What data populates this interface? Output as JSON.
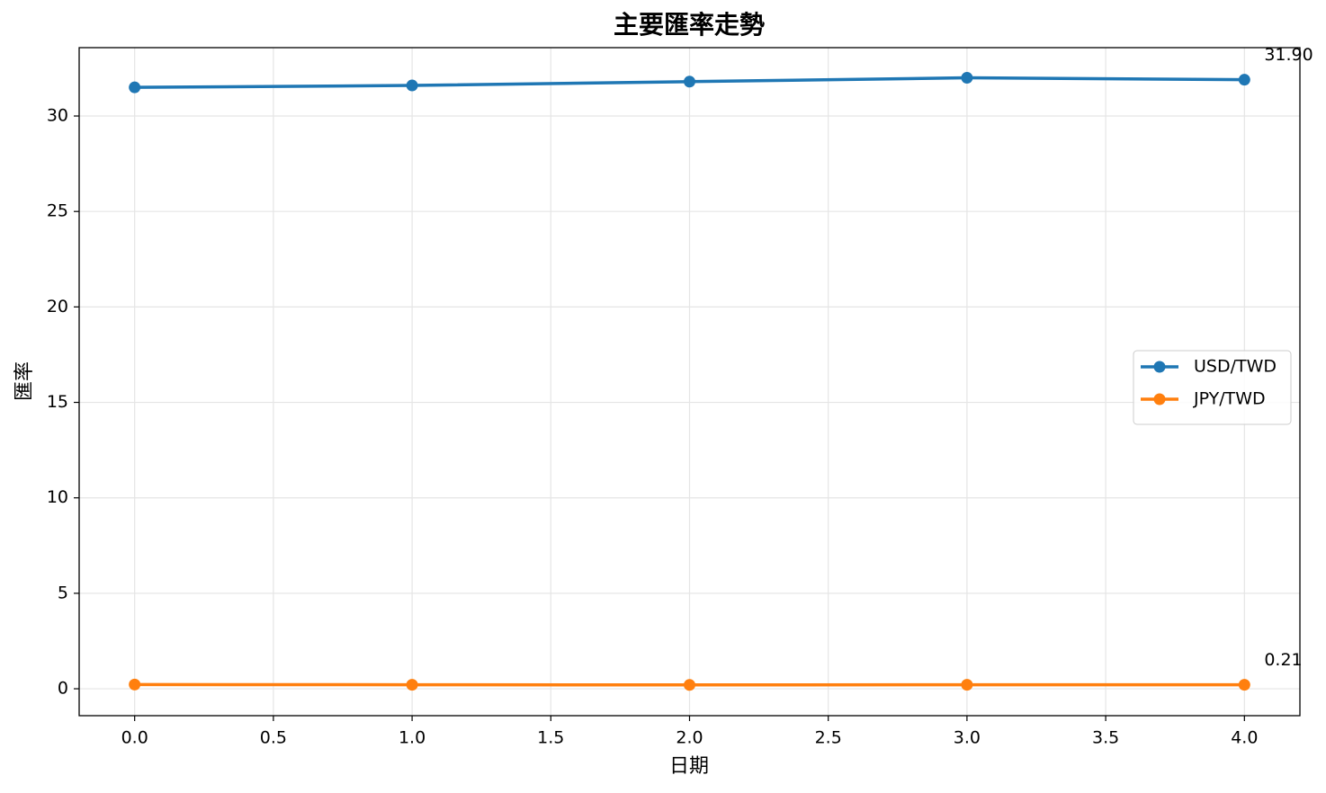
{
  "chart_data": {
    "type": "line",
    "title": "主要匯率走勢",
    "x_label": "日期",
    "y_label": "匯率",
    "x": [
      0,
      1,
      2,
      3,
      4
    ],
    "series": [
      {
        "name": "USD/TWD",
        "color": "#1f77b4",
        "values": [
          31.5,
          31.6,
          31.8,
          32.0,
          31.9
        ],
        "value_labels": [
          null,
          null,
          null,
          null,
          "31.90"
        ]
      },
      {
        "name": "JPY/TWD",
        "color": "#ff7f0e",
        "values": [
          0.22,
          0.21,
          0.2,
          0.21,
          0.21
        ]
      }
    ],
    "xlim": [
      -0.2,
      4.2
    ],
    "xticks": [
      {
        "value": 0,
        "label": "0.0"
      },
      {
        "value": 0.5,
        "label": "0.5"
      },
      {
        "value": 1,
        "label": "1.0"
      },
      {
        "value": 1.5,
        "label": "1.5"
      },
      {
        "value": 2,
        "label": "2.0"
      },
      {
        "value": 2.5,
        "label": "2.5"
      },
      {
        "value": 3,
        "label": "3.0"
      },
      {
        "value": 3.5,
        "label": "3.5"
      },
      {
        "value": 4,
        "label": "4.0"
      }
    ],
    "ylim": [
      -1.41,
      33.58
    ],
    "yticks": [
      0,
      5,
      10,
      15,
      20,
      25,
      30
    ],
    "grid": true,
    "legend": "right"
  }
}
